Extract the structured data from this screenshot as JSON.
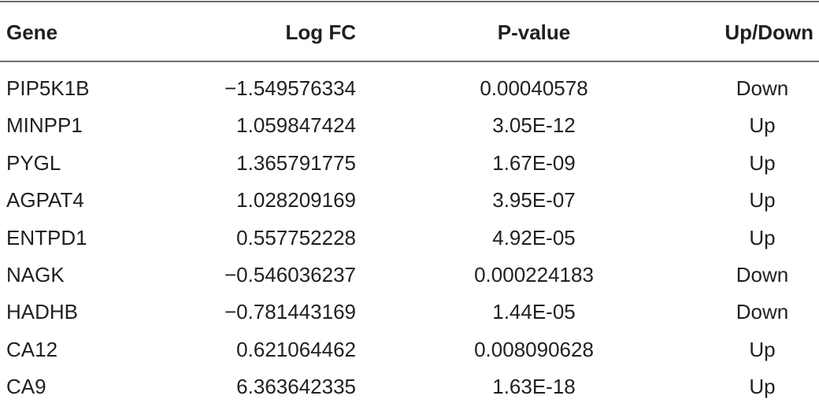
{
  "table": {
    "headers": [
      "Gene",
      "Log FC",
      "P-value",
      "Up/Down"
    ],
    "rows": [
      [
        "PIP5K1B",
        "−1.549576334",
        "0.00040578",
        "Down"
      ],
      [
        "MINPP1",
        "1.059847424",
        "3.05E-12",
        "Up"
      ],
      [
        "PYGL",
        "1.365791775",
        "1.67E-09",
        "Up"
      ],
      [
        "AGPAT4",
        "1.028209169",
        "3.95E-07",
        "Up"
      ],
      [
        "ENTPD1",
        "0.557752228",
        "4.92E-05",
        "Up"
      ],
      [
        "NAGK",
        "−0.546036237",
        "0.000224183",
        "Down"
      ],
      [
        "HADHB",
        "−0.781443169",
        "1.44E-05",
        "Down"
      ],
      [
        "CA12",
        "0.621064462",
        "0.008090628",
        "Up"
      ],
      [
        "CA9",
        "6.363642335",
        "1.63E-18",
        "Up"
      ]
    ]
  }
}
